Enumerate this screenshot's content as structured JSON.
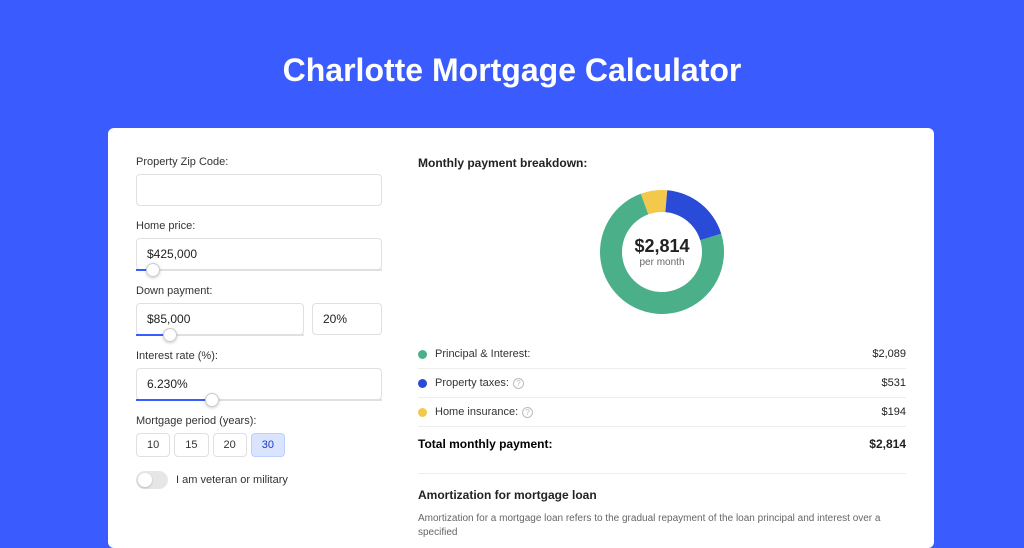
{
  "page": {
    "title": "Charlotte Mortgage Calculator",
    "background_color": "#3a5cff",
    "card_background": "#ffffff"
  },
  "form": {
    "zip": {
      "label": "Property Zip Code:",
      "value": ""
    },
    "home_price": {
      "label": "Home price:",
      "value": "$425,000",
      "slider_percent": 7
    },
    "down_payment": {
      "label": "Down payment:",
      "amount": "$85,000",
      "percent": "20%",
      "slider_percent": 20
    },
    "interest_rate": {
      "label": "Interest rate (%):",
      "value": "6.230%",
      "slider_percent": 31
    },
    "period": {
      "label": "Mortgage period (years):",
      "options": [
        "10",
        "15",
        "20",
        "30"
      ],
      "selected": "30"
    },
    "veteran": {
      "label": "I am veteran or military",
      "on": false
    }
  },
  "breakdown": {
    "title": "Monthly payment breakdown:",
    "chart": {
      "type": "donut",
      "center_value": "$2,814",
      "center_sub": "per month",
      "thickness": 22,
      "segments": [
        {
          "label": "Principal & Interest:",
          "value": "$2,089",
          "color": "#4bb08a",
          "fraction": 0.742
        },
        {
          "label": "Property taxes:",
          "value": "$531",
          "color": "#2a4ad8",
          "fraction": 0.189,
          "info": true
        },
        {
          "label": "Home insurance:",
          "value": "$194",
          "color": "#f2c94c",
          "fraction": 0.069,
          "info": true
        }
      ]
    },
    "total": {
      "label": "Total monthly payment:",
      "value": "$2,814"
    }
  },
  "amortization": {
    "title": "Amortization for mortgage loan",
    "text": "Amortization for a mortgage loan refers to the gradual repayment of the loan principal and interest over a specified"
  }
}
